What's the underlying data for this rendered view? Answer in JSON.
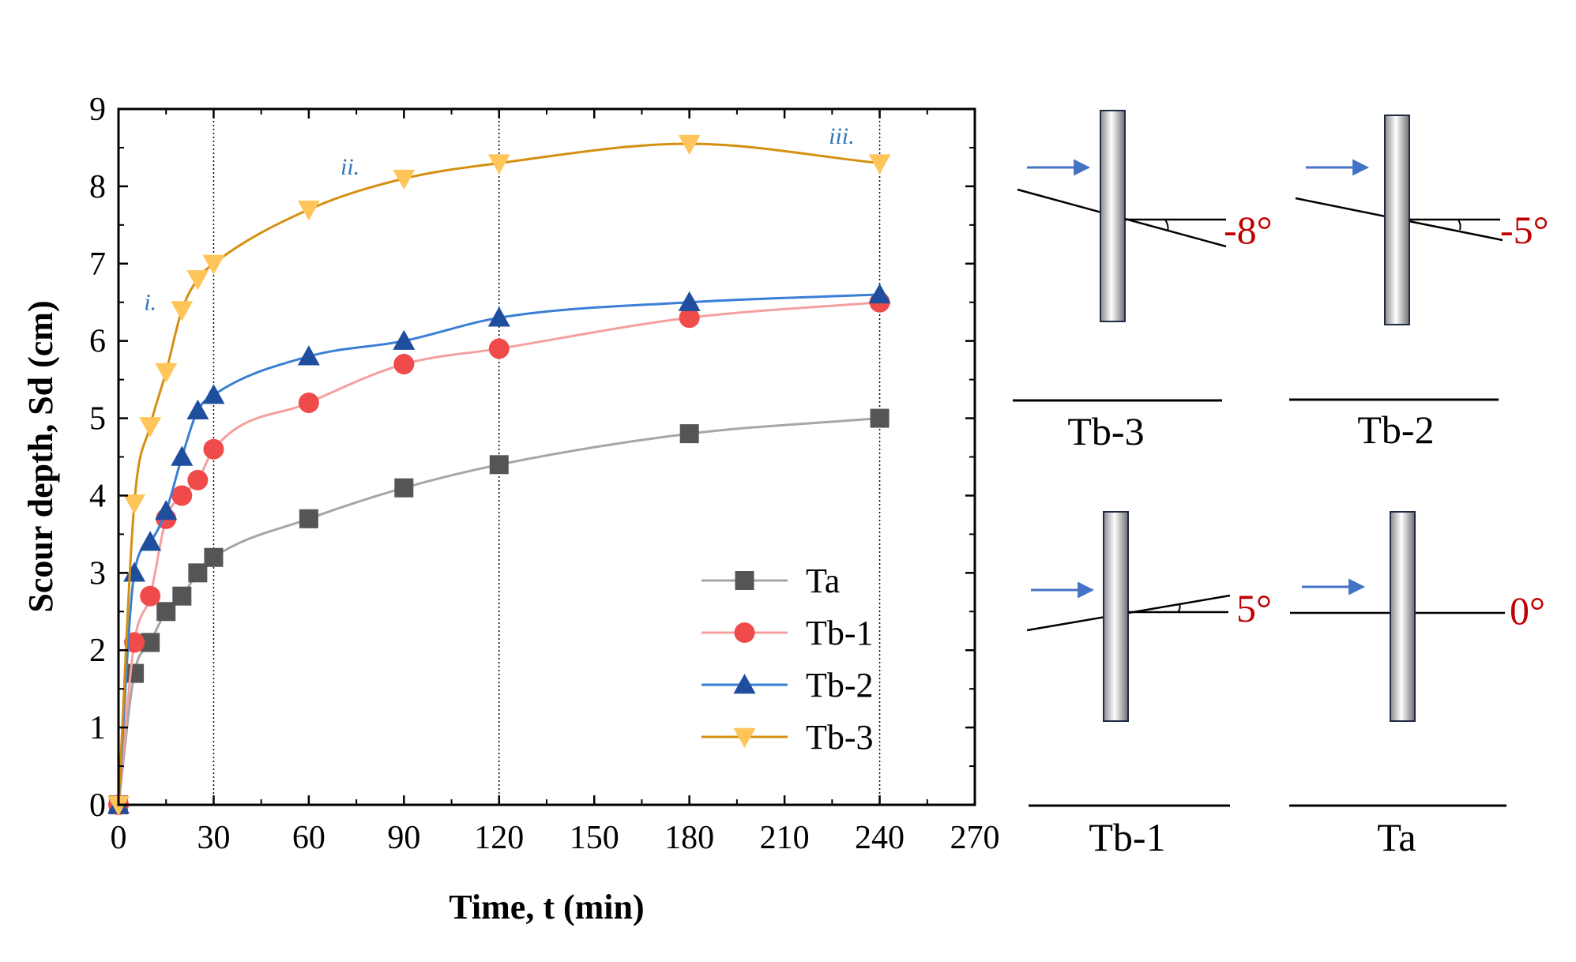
{
  "chart_data": {
    "type": "line",
    "xlabel": "Time, t (min)",
    "ylabel": "Scour depth, Sd (cm)",
    "xlim": [
      0,
      270
    ],
    "ylim": [
      0,
      9
    ],
    "x_ticks": [
      "0",
      "30",
      "60",
      "90",
      "120",
      "150",
      "180",
      "210",
      "240",
      "270"
    ],
    "y_ticks": [
      "0",
      "1",
      "2",
      "3",
      "4",
      "5",
      "6",
      "7",
      "8",
      "9"
    ],
    "grid": false,
    "legend_position": "bottom-right",
    "reference_lines_x": [
      30,
      120,
      240
    ],
    "annotations": [
      {
        "text": "i.",
        "x": 10,
        "y": 6.4
      },
      {
        "text": "ii.",
        "x": 73,
        "y": 8.15
      },
      {
        "text": "iii.",
        "x": 228,
        "y": 8.55
      }
    ],
    "series": [
      {
        "name": "Ta",
        "color": "#555555",
        "line_color": "#a6a6a6",
        "marker": "square",
        "x": [
          0,
          5,
          10,
          15,
          20,
          25,
          30,
          60,
          90,
          120,
          180,
          240
        ],
        "y": [
          0,
          1.7,
          2.1,
          2.5,
          2.7,
          3.0,
          3.2,
          3.7,
          4.1,
          4.4,
          4.8,
          5.0
        ]
      },
      {
        "name": "Tb-1",
        "color": "#f04b4b",
        "line_color": "#f4a0a0",
        "marker": "circle",
        "x": [
          0,
          5,
          10,
          15,
          20,
          25,
          30,
          60,
          90,
          120,
          180,
          240
        ],
        "y": [
          0,
          2.1,
          2.7,
          3.7,
          4.0,
          4.2,
          4.6,
          5.2,
          5.7,
          5.9,
          6.3,
          6.5
        ]
      },
      {
        "name": "Tb-2",
        "color": "#1f4e9e",
        "line_color": "#3a7fd5",
        "marker": "triangle-up",
        "x": [
          0,
          5,
          10,
          15,
          20,
          25,
          30,
          60,
          90,
          120,
          180,
          240
        ],
        "y": [
          0,
          3.0,
          3.4,
          3.8,
          4.5,
          5.1,
          5.3,
          5.8,
          6.0,
          6.3,
          6.5,
          6.6
        ]
      },
      {
        "name": "Tb-3",
        "color": "#ffc55a",
        "line_color": "#d4900f",
        "marker": "triangle-down",
        "x": [
          0,
          5,
          10,
          15,
          20,
          25,
          30,
          60,
          90,
          120,
          180,
          240
        ],
        "y": [
          0,
          3.9,
          4.9,
          5.6,
          6.4,
          6.8,
          7.0,
          7.7,
          8.1,
          8.3,
          8.55,
          8.3
        ]
      }
    ]
  },
  "schematics": [
    {
      "label": "Tb-3",
      "angle": "-8°"
    },
    {
      "label": "Tb-2",
      "angle": "-5°"
    },
    {
      "label": "Tb-1",
      "angle": "5°"
    },
    {
      "label": "Ta",
      "angle": "0°"
    }
  ]
}
